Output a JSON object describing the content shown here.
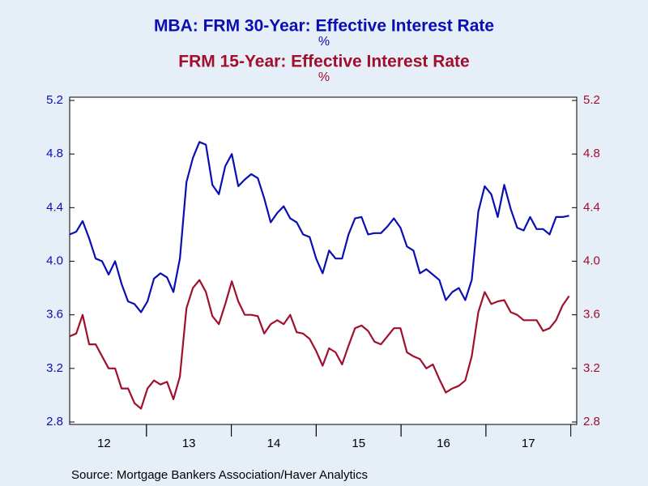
{
  "chart_data": {
    "type": "line",
    "title": [
      "MBA: FRM 30-Year: Effective Interest Rate",
      "%",
      "FRM 15-Year: Effective Interest Rate",
      "%"
    ],
    "source": "Source:  Mortgage Bankers Association/Haver Analytics",
    "x": [
      12.096,
      12.172,
      12.248,
      12.325,
      12.401,
      12.477,
      12.554,
      12.63,
      12.707,
      12.783,
      12.86,
      12.936,
      13.012,
      13.089,
      13.165,
      13.242,
      13.318,
      13.394,
      13.471,
      13.547,
      13.624,
      13.7,
      13.777,
      13.853,
      13.929,
      14.006,
      14.082,
      14.159,
      14.235,
      14.312,
      14.388,
      14.464,
      14.541,
      14.617,
      14.694,
      14.77,
      14.846,
      14.923,
      14.999,
      15.076,
      15.152,
      15.229,
      15.305,
      15.381,
      15.458,
      15.534,
      15.611,
      15.687,
      15.763,
      15.84,
      15.916,
      15.993,
      16.069,
      16.146,
      16.222,
      16.298,
      16.375,
      16.451,
      16.528,
      16.604,
      16.681,
      16.757,
      16.833,
      16.91,
      16.986,
      17.063,
      17.139,
      17.216,
      17.292,
      17.368,
      17.445,
      17.521,
      17.598,
      17.674,
      17.75,
      17.827,
      17.903,
      17.98
    ],
    "series": [
      {
        "name": "MBA: FRM 30-Year: Effective Interest Rate",
        "color": "#0a0fb4",
        "axis": "y",
        "values": [
          4.2,
          4.22,
          4.3,
          4.17,
          4.02,
          4.0,
          3.9,
          4.0,
          3.83,
          3.7,
          3.68,
          3.62,
          3.7,
          3.87,
          3.91,
          3.88,
          3.77,
          4.02,
          4.59,
          4.77,
          4.89,
          4.87,
          4.57,
          4.5,
          4.71,
          4.8,
          4.56,
          4.61,
          4.65,
          4.62,
          4.47,
          4.29,
          4.36,
          4.41,
          4.32,
          4.29,
          4.2,
          4.18,
          4.02,
          3.91,
          4.08,
          4.02,
          4.02,
          4.2,
          4.32,
          4.33,
          4.2,
          4.21,
          4.21,
          4.26,
          4.32,
          4.25,
          4.11,
          4.08,
          3.91,
          3.94,
          3.9,
          3.86,
          3.71,
          3.77,
          3.8,
          3.71,
          3.86,
          4.37,
          4.56,
          4.5,
          4.33,
          4.57,
          4.39,
          4.25,
          4.23,
          4.33,
          4.24,
          4.24,
          4.2,
          4.33,
          4.33,
          4.34
        ]
      },
      {
        "name": "FRM 15-Year: Effective Interest Rate",
        "color": "#a0102c",
        "axis": "y2",
        "values": [
          3.44,
          3.46,
          3.6,
          3.38,
          3.38,
          3.29,
          3.2,
          3.2,
          3.05,
          3.05,
          2.94,
          2.9,
          3.05,
          3.11,
          3.08,
          3.1,
          2.97,
          3.14,
          3.65,
          3.8,
          3.86,
          3.77,
          3.59,
          3.53,
          3.68,
          3.85,
          3.7,
          3.6,
          3.6,
          3.59,
          3.46,
          3.53,
          3.56,
          3.53,
          3.6,
          3.47,
          3.46,
          3.42,
          3.33,
          3.22,
          3.35,
          3.32,
          3.23,
          3.37,
          3.5,
          3.52,
          3.48,
          3.4,
          3.38,
          3.44,
          3.5,
          3.5,
          3.32,
          3.29,
          3.27,
          3.2,
          3.23,
          3.12,
          3.02,
          3.05,
          3.07,
          3.11,
          3.29,
          3.62,
          3.77,
          3.68,
          3.7,
          3.71,
          3.62,
          3.6,
          3.56,
          3.56,
          3.56,
          3.48,
          3.5,
          3.56,
          3.67,
          3.74
        ]
      }
    ],
    "xlim": [
      12.095,
      18.07
    ],
    "xticks": [
      {
        "value": 12.5,
        "label": "12"
      },
      {
        "value": 13.5,
        "label": "13"
      },
      {
        "value": 14.5,
        "label": "14"
      },
      {
        "value": 15.5,
        "label": "15"
      },
      {
        "value": 16.5,
        "label": "16"
      },
      {
        "value": 17.5,
        "label": "17"
      }
    ],
    "ylim": [
      2.8,
      5.2
    ],
    "yticks": [
      2.8,
      3.2,
      3.6,
      {
        "value": 4,
        "label": "4.0"
      },
      4.4,
      4.8,
      5.2
    ],
    "y2lim": [
      2.8,
      5.2
    ],
    "y2ticks": [
      2.8,
      3.2,
      3.6,
      {
        "value": 4,
        "label": "4.0"
      },
      4.4,
      4.8,
      5.2
    ],
    "grid": false
  }
}
